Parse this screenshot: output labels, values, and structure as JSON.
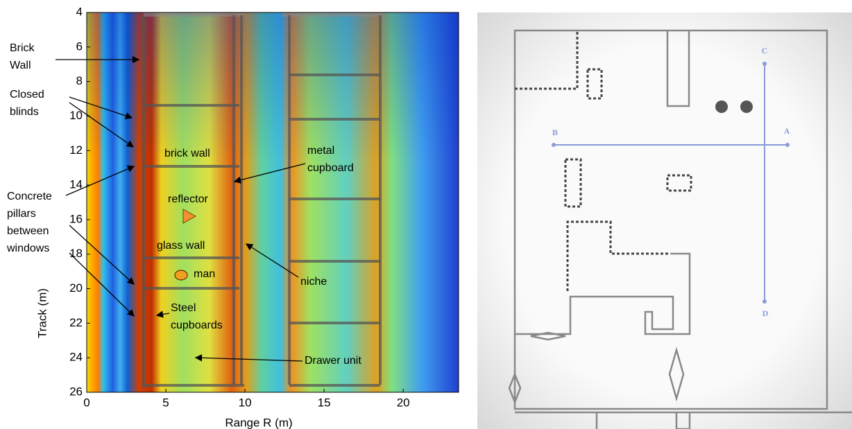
{
  "chart_data": {
    "type": "heatmap",
    "xlabel": "Range  R (m)",
    "ylabel": "Track (m)",
    "xlim": [
      0,
      23.5
    ],
    "xticks": [
      0,
      5,
      10,
      15,
      20
    ],
    "ylim": [
      26,
      4
    ],
    "yticks": [
      4,
      6,
      8,
      10,
      12,
      14,
      16,
      18,
      20,
      22,
      24,
      26
    ],
    "annotations": [
      {
        "lines": [
          "Brick",
          "Wall"
        ]
      },
      {
        "lines": [
          "Closed",
          "blinds"
        ]
      },
      {
        "lines": [
          "Concrete",
          "pillars",
          "between",
          "windows"
        ]
      },
      {
        "lines": [
          "brick wall"
        ]
      },
      {
        "lines": [
          "reflector"
        ]
      },
      {
        "lines": [
          "glass wall"
        ]
      },
      {
        "lines": [
          "man"
        ]
      },
      {
        "lines": [
          "Steel",
          "cupboards"
        ]
      },
      {
        "lines": [
          "metal",
          "cupboard"
        ]
      },
      {
        "lines": [
          "niche"
        ]
      },
      {
        "lines": [
          "Drawer unit"
        ]
      }
    ]
  },
  "floor_plan": {
    "labels": [
      "A",
      "B",
      "C",
      "D"
    ]
  }
}
